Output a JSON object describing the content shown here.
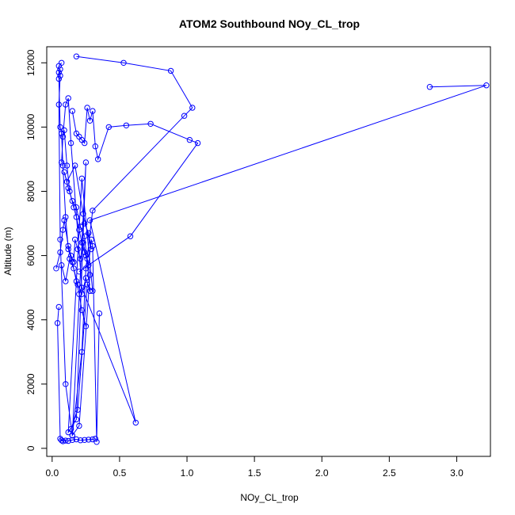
{
  "chart_data": {
    "type": "line",
    "title": "ATOM2 Southbound NOy_CL_trop",
    "xlabel": "NOy_CL_trop",
    "ylabel": "Altitude (m)",
    "xlim": [
      -0.04,
      3.25
    ],
    "ylim": [
      -250,
      12500
    ],
    "xticks": [
      0.0,
      0.5,
      1.0,
      1.5,
      2.0,
      2.5,
      3.0
    ],
    "xtick_labels": [
      "0.0",
      "0.5",
      "1.0",
      "1.5",
      "2.0",
      "2.5",
      "3.0"
    ],
    "yticks": [
      0,
      2000,
      4000,
      6000,
      8000,
      10000,
      12000
    ],
    "ytick_labels": [
      "0",
      "2000",
      "4000",
      "6000",
      "8000",
      "10000",
      "12000"
    ],
    "grid": false,
    "series_color": "#0000ff",
    "series": [
      {
        "x": [
          0.18,
          0.53,
          0.88,
          1.04,
          0.98,
          0.3,
          0.25,
          0.22,
          0.15,
          0.1,
          0.06,
          0.05,
          0.06,
          0.05,
          0.07
        ],
        "y": [
          12200,
          12000,
          11750,
          10600,
          10350,
          7400,
          5600,
          3000,
          400,
          2000,
          6500,
          10700,
          11600,
          11900,
          12000
        ]
      },
      {
        "x": [
          0.06,
          0.05,
          0.05,
          0.06,
          0.07,
          0.08,
          0.1,
          0.12,
          0.15,
          0.18,
          0.2,
          0.22,
          0.25
        ],
        "y": [
          11800,
          11700,
          11500,
          10000,
          9800,
          8800,
          7200,
          6200,
          5800,
          5200,
          4800,
          4300,
          3800
        ]
      },
      {
        "x": [
          2.8,
          3.22,
          0.28,
          0.62,
          0.22,
          0.14,
          0.12,
          0.1,
          0.08,
          0.07
        ],
        "y": [
          11250,
          11300,
          7100,
          800,
          5000,
          9500,
          10900,
          10700,
          9700,
          8900
        ]
      },
      {
        "x": [
          0.05,
          0.04,
          0.06,
          0.07,
          0.08,
          0.1,
          0.12,
          0.15,
          0.18,
          0.21,
          0.24,
          0.27,
          0.3,
          0.32
        ],
        "y": [
          4400,
          3900,
          300,
          250,
          220,
          240,
          230,
          260,
          280,
          250,
          260,
          270,
          280,
          300
        ]
      },
      {
        "x": [
          0.03,
          0.06,
          0.08,
          0.09,
          0.12,
          0.14,
          0.16,
          0.17,
          0.19,
          0.21,
          0.23,
          0.25,
          0.27,
          0.29,
          0.3,
          0.33,
          0.35
        ],
        "y": [
          5600,
          6100,
          6800,
          7100,
          6300,
          6000,
          5800,
          6500,
          6200,
          5900,
          6400,
          6000,
          5700,
          6500,
          6300,
          200,
          4200
        ]
      },
      {
        "x": [
          0.15,
          0.18,
          0.2,
          0.22,
          0.24,
          0.26,
          0.28,
          0.3,
          0.32,
          0.34,
          0.42,
          0.55,
          0.73,
          1.02,
          1.08,
          0.58,
          0.2
        ],
        "y": [
          10500,
          9800,
          9700,
          9600,
          9500,
          10600,
          10200,
          10500,
          9400,
          9000,
          10000,
          10050,
          10100,
          9600,
          9500,
          6600,
          5500
        ]
      },
      {
        "x": [
          0.09,
          0.11,
          0.13,
          0.16,
          0.18,
          0.2,
          0.22,
          0.24,
          0.26,
          0.28,
          0.2,
          0.15,
          0.25,
          0.18,
          0.12,
          0.22,
          0.3,
          0.26,
          0.19,
          0.14
        ],
        "y": [
          9900,
          8800,
          8000,
          7500,
          7200,
          6800,
          6400,
          6100,
          5900,
          5400,
          700,
          400,
          8900,
          900,
          500,
          8400,
          4900,
          5100,
          1200,
          600
        ]
      },
      {
        "x": [
          0.07,
          0.1,
          0.13,
          0.16,
          0.19,
          0.22,
          0.25,
          0.28,
          0.24,
          0.21,
          0.18,
          0.15,
          0.12,
          0.09,
          0.11,
          0.17,
          0.23,
          0.29,
          0.27,
          0.24
        ],
        "y": [
          5700,
          5200,
          5900,
          5600,
          5100,
          4800,
          5300,
          4900,
          6600,
          6900,
          7500,
          7700,
          8100,
          8600,
          8300,
          8800,
          7300,
          6200,
          6700,
          7000
        ]
      }
    ]
  }
}
